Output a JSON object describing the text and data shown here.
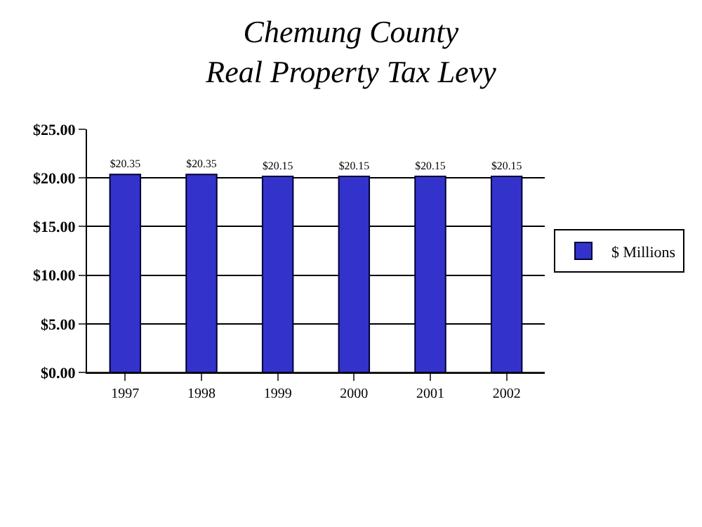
{
  "chart_data": {
    "type": "bar",
    "title": "Chemung County\nReal Property Tax Levy",
    "categories": [
      "1997",
      "1998",
      "1999",
      "2000",
      "2001",
      "2002"
    ],
    "series": [
      {
        "name": "$ Millions",
        "color": "#3333cc",
        "values": [
          20.35,
          20.35,
          20.15,
          20.15,
          20.15,
          20.15
        ],
        "value_labels": [
          "$20.35",
          "$20.35",
          "$20.15",
          "$20.15",
          "$20.15",
          "$20.15"
        ]
      }
    ],
    "ylim": [
      0,
      25
    ],
    "yticks": [
      {
        "value": 0,
        "label": "$0.00"
      },
      {
        "value": 5,
        "label": "$5.00"
      },
      {
        "value": 10,
        "label": "$10.00"
      },
      {
        "value": 15,
        "label": "$15.00"
      },
      {
        "value": 20,
        "label": "$20.00"
      },
      {
        "value": 25,
        "label": "$25.00"
      }
    ],
    "grid": "y",
    "legend": "right"
  }
}
